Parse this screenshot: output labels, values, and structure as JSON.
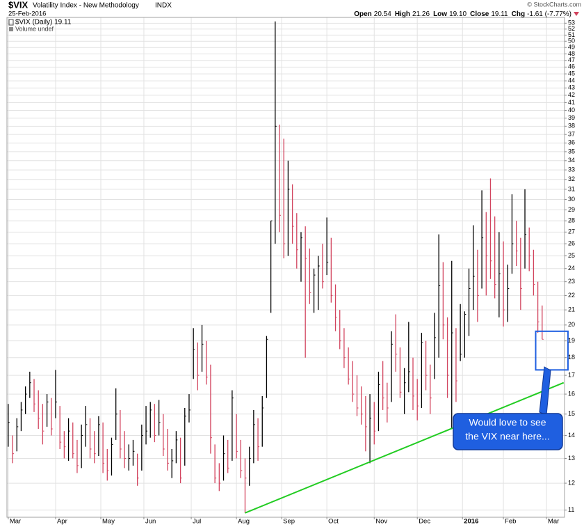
{
  "chart_data": {
    "type": "ohlc",
    "title": "$VIX",
    "subtitle": "Volatility Index - New Methodology",
    "exchange": "INDX",
    "date": "25-Feb-2016",
    "credit": "© StockCharts.com",
    "quote": [
      {
        "label": "Open",
        "value": "20.54"
      },
      {
        "label": "High",
        "value": "21.26"
      },
      {
        "label": "Low",
        "value": "19.10"
      },
      {
        "label": "Close",
        "value": "19.11"
      },
      {
        "label": "Chg",
        "value": "-1.61 (-7.77%)"
      }
    ],
    "legend_text": "$VIX (Daily) 19.11",
    "volume_text": "Volume undef",
    "callout": [
      "Would love to see",
      "the VIX near here..."
    ],
    "log_scale": true,
    "grid": true,
    "up_color": "#000000",
    "down_color": "#d2445e",
    "trendline_color": "#22cc22",
    "highlight_color": "#1f5fe0",
    "ylim": [
      10.75,
      54
    ],
    "yticks": [
      11,
      12,
      13,
      14,
      15,
      16,
      17,
      18,
      19,
      20,
      21,
      22,
      23,
      24,
      25,
      26,
      27,
      28,
      29,
      30,
      31,
      32,
      33,
      34,
      35,
      36,
      37,
      38,
      39,
      40,
      41,
      42,
      43,
      44,
      45,
      46,
      47,
      48,
      49,
      50,
      51,
      52,
      53
    ],
    "xlim": [
      -0.6,
      258.4
    ],
    "xticks": [
      {
        "value": 0,
        "label": "Mar"
      },
      {
        "value": 22,
        "label": "Apr"
      },
      {
        "value": 43,
        "label": "May"
      },
      {
        "value": 63,
        "label": "Jun"
      },
      {
        "value": 85,
        "label": "Jul"
      },
      {
        "value": 106,
        "label": "Aug"
      },
      {
        "value": 127,
        "label": "Sep"
      },
      {
        "value": 148,
        "label": "Oct"
      },
      {
        "value": 170,
        "label": "Nov"
      },
      {
        "value": 190,
        "label": "Dec"
      },
      {
        "value": 211,
        "label": "2016"
      },
      {
        "value": 230,
        "label": "Feb"
      },
      {
        "value": 250,
        "label": "Mar"
      }
    ],
    "x": [
      0,
      2,
      4,
      6,
      8,
      10,
      12,
      14,
      16,
      18,
      20,
      22,
      24,
      26,
      28,
      30,
      32,
      34,
      36,
      38,
      40,
      42,
      44,
      46,
      48,
      50,
      52,
      54,
      56,
      58,
      60,
      62,
      64,
      66,
      68,
      70,
      72,
      74,
      76,
      78,
      80,
      82,
      84,
      86,
      88,
      90,
      92,
      94,
      96,
      98,
      100,
      102,
      104,
      106,
      108,
      110,
      112,
      114,
      116,
      118,
      120,
      122,
      124,
      126,
      128,
      130,
      132,
      134,
      136,
      138,
      140,
      142,
      144,
      146,
      148,
      150,
      152,
      154,
      156,
      158,
      160,
      162,
      164,
      166,
      168,
      170,
      172,
      174,
      176,
      178,
      180,
      182,
      184,
      186,
      188,
      190,
      192,
      194,
      196,
      198,
      200,
      202,
      204,
      206,
      208,
      210,
      212,
      214,
      216,
      218,
      220,
      222,
      224,
      226,
      228,
      230,
      232,
      234,
      236,
      238,
      240,
      242,
      244,
      246,
      248
    ],
    "high": [
      15.5,
      14.0,
      14.8,
      15.6,
      16.4,
      17.2,
      16.8,
      16.2,
      15.5,
      16.0,
      15.8,
      17.3,
      15.4,
      14.2,
      14.8,
      14.6,
      13.8,
      14.5,
      15.4,
      14.8,
      14.2,
      14.9,
      14.6,
      13.4,
      13.9,
      16.3,
      15.2,
      14.2,
      13.6,
      13.8,
      13.2,
      14.5,
      15.4,
      15.6,
      15.5,
      15.7,
      15.0,
      14.3,
      13.4,
      14.2,
      13.9,
      15.3,
      16.0,
      19.8,
      18.9,
      20.0,
      19.0,
      17.6,
      13.6,
      12.8,
      14.0,
      13.8,
      16.2,
      15.0,
      13.8,
      13.0,
      13.5,
      15.2,
      14.8,
      15.9,
      19.3,
      28.0,
      53.3,
      38.2,
      36.5,
      34.0,
      31.5,
      28.7,
      27.0,
      27.5,
      25.6,
      24.0,
      25.0,
      26.0,
      28.3,
      26.5,
      22.8,
      21.0,
      19.8,
      18.6,
      17.8,
      17.0,
      16.4,
      15.9,
      16.0,
      15.6,
      17.2,
      17.8,
      16.6,
      19.6,
      20.7,
      18.6,
      17.4,
      20.2,
      18.0,
      16.8,
      19.5,
      19.0,
      17.6,
      20.8,
      26.8,
      24.5,
      20.5,
      24.6,
      19.8,
      21.4,
      20.9,
      24.0,
      27.6,
      25.5,
      30.9,
      28.8,
      32.1,
      28.4,
      27.0,
      26.2,
      24.3,
      30.5,
      28.0,
      26.5,
      31.0,
      27.4,
      25.5,
      23.0,
      21.3
    ],
    "low": [
      13.5,
      12.8,
      13.3,
      14.2,
      15.0,
      15.8,
      15.1,
      14.3,
      13.6,
      14.4,
      14.0,
      14.8,
      13.4,
      13.0,
      12.9,
      13.0,
      12.4,
      12.6,
      13.5,
      13.0,
      12.8,
      13.1,
      12.4,
      12.1,
      12.3,
      13.8,
      13.0,
      12.6,
      12.5,
      12.7,
      11.9,
      12.5,
      13.6,
      13.9,
      13.7,
      14.0,
      13.1,
      12.5,
      12.2,
      12.8,
      12.0,
      12.7,
      14.6,
      16.8,
      16.2,
      17.2,
      16.5,
      13.2,
      12.0,
      11.7,
      12.1,
      12.4,
      12.9,
      13.0,
      12.2,
      10.9,
      11.9,
      12.8,
      12.9,
      13.5,
      15.8,
      20.8,
      26.0,
      27.0,
      24.8,
      25.0,
      26.0,
      24.0,
      23.0,
      18.0,
      21.4,
      20.8,
      21.0,
      22.5,
      23.5,
      21.5,
      19.6,
      18.5,
      17.4,
      16.5,
      15.6,
      14.9,
      14.5,
      13.3,
      12.8,
      13.6,
      14.2,
      15.2,
      14.6,
      15.6,
      17.2,
      15.8,
      15.0,
      16.1,
      15.2,
      14.7,
      15.3,
      16.2,
      15.0,
      16.8,
      18.0,
      19.1,
      15.8,
      14.3,
      15.6,
      17.8,
      18.0,
      19.3,
      21.0,
      20.2,
      22.5,
      22.0,
      23.2,
      21.8,
      20.5,
      19.9,
      20.2,
      23.6,
      24.2,
      21.0,
      24.0,
      23.8,
      22.0,
      19.5,
      19.1
    ],
    "close": [
      14.6,
      13.2,
      14.4,
      15.2,
      16.0,
      16.6,
      15.5,
      14.8,
      14.2,
      15.6,
      14.3,
      15.6,
      13.7,
      13.5,
      14.2,
      13.2,
      12.7,
      14.0,
      14.5,
      13.4,
      13.2,
      14.5,
      12.8,
      12.5,
      13.6,
      15.0,
      13.4,
      13.0,
      13.0,
      13.3,
      12.2,
      14.0,
      14.2,
      15.2,
      14.0,
      14.6,
      13.4,
      12.8,
      12.9,
      13.8,
      12.2,
      14.9,
      15.2,
      18.5,
      17.0,
      18.8,
      16.9,
      13.9,
      12.2,
      12.0,
      13.2,
      12.6,
      15.8,
      13.3,
      12.5,
      12.2,
      13.0,
      14.5,
      13.5,
      15.3,
      19.1,
      28.0,
      38.0,
      28.5,
      26.0,
      31.0,
      27.5,
      25.5,
      26.5,
      24.8,
      22.2,
      23.5,
      24.2,
      23.0,
      24.5,
      22.0,
      20.5,
      19.0,
      18.0,
      16.8,
      16.0,
      15.3,
      15.0,
      14.4,
      14.8,
      14.2,
      16.5,
      15.8,
      15.3,
      18.8,
      18.2,
      16.1,
      16.6,
      17.2,
      15.9,
      15.4,
      18.9,
      17.0,
      15.8,
      19.2,
      22.7,
      20.0,
      17.0,
      19.5,
      16.7,
      18.2,
      20.7,
      22.5,
      23.4,
      22.0,
      26.5,
      25.0,
      24.6,
      22.8,
      23.6,
      21.0,
      22.5,
      26.0,
      25.4,
      22.5,
      26.8,
      25.0,
      22.8,
      20.2,
      19.1
    ],
    "trendline": {
      "x": [
        110,
        258
      ],
      "y": [
        10.9,
        16.6
      ]
    },
    "highlight_box": {
      "x": [
        245,
        260
      ],
      "y": [
        17.3,
        19.6
      ]
    }
  }
}
